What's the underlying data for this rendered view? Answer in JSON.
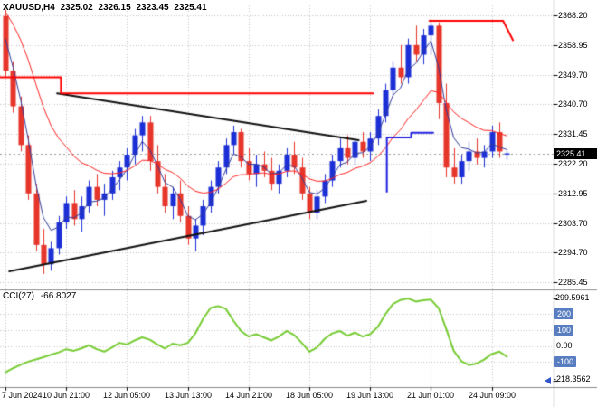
{
  "window": {
    "background": "#ffffff",
    "grid_color": "#c4c4c4",
    "separator_color": "#8a8a8a",
    "axis_text_color": "#000000"
  },
  "header": {
    "symbol_period": "XAUUSD,H4",
    "open": "2325.02",
    "high": "2326.15",
    "low": "2323.45",
    "close": "2325.41"
  },
  "price_axis": {
    "ticks": [
      "2368.20",
      "2358.95",
      "2349.70",
      "2340.70",
      "2331.45",
      "2322.20",
      "2312.95",
      "2303.70",
      "2294.70",
      "2285.45"
    ],
    "current_price_label": "2325.41",
    "badge_bg": "#000000",
    "badge_text": "#ffffff"
  },
  "time_axis": {
    "labels": [
      "7 Jun 2024",
      "10 Jun 21:00",
      "12 Jun 05:00",
      "13 Jun 13:00",
      "14 Jun 21:00",
      "18 Jun 05:00",
      "19 Jun 13:00",
      "21 Jun 01:00",
      "24 Jun 09:00"
    ],
    "label_indices": [
      0,
      8,
      16,
      24,
      32,
      40,
      48,
      56,
      64
    ]
  },
  "indicator_panel": {
    "name": "CCI(27)",
    "value": "-66.8027",
    "scale_max_label": "299.5961",
    "scale_min_label": "-218.3562",
    "levels": [
      {
        "label": "200",
        "value": 200,
        "badge": true
      },
      {
        "label": "100",
        "value": 100,
        "badge": true
      },
      {
        "label": "0.00",
        "value": 0,
        "badge": false
      },
      {
        "label": "-100",
        "value": -100,
        "badge": true
      }
    ],
    "badge_bg": "#587dc0",
    "badge_text": "#ffffff"
  },
  "chart_data": [
    {
      "type": "candlestick",
      "title": "XAUUSD,H4",
      "ylim": [
        2285.45,
        2368.2
      ],
      "up_color": "#1c2fd6",
      "down_color": "#e6352b",
      "current_price": 2325.41,
      "candles": [
        [
          2368,
          2370,
          2349,
          2351
        ],
        [
          2351,
          2354,
          2338,
          2340
        ],
        [
          2340,
          2343,
          2326,
          2328
        ],
        [
          2328,
          2331,
          2311,
          2313
        ],
        [
          2313,
          2316,
          2295,
          2297
        ],
        [
          2297,
          2302,
          2288,
          2291
        ],
        [
          2291,
          2298,
          2289,
          2296
        ],
        [
          2296,
          2306,
          2294,
          2304
        ],
        [
          2304,
          2312,
          2302,
          2310
        ],
        [
          2310,
          2314,
          2303,
          2305
        ],
        [
          2305,
          2312,
          2301,
          2309
        ],
        [
          2309,
          2317,
          2307,
          2315
        ],
        [
          2315,
          2319,
          2309,
          2311
        ],
        [
          2311,
          2316,
          2306,
          2313
        ],
        [
          2313,
          2320,
          2311,
          2318
        ],
        [
          2318,
          2323,
          2314,
          2321
        ],
        [
          2321,
          2327,
          2317,
          2325
        ],
        [
          2325,
          2333,
          2322,
          2331
        ],
        [
          2331,
          2337,
          2326,
          2335
        ],
        [
          2335,
          2337,
          2320,
          2323
        ],
        [
          2323,
          2328,
          2313,
          2315
        ],
        [
          2315,
          2319,
          2307,
          2309
        ],
        [
          2309,
          2315,
          2305,
          2313
        ],
        [
          2313,
          2317,
          2304,
          2306
        ],
        [
          2306,
          2309,
          2297,
          2299
        ],
        [
          2299,
          2305,
          2295,
          2303
        ],
        [
          2303,
          2311,
          2300,
          2309
        ],
        [
          2309,
          2317,
          2307,
          2315
        ],
        [
          2315,
          2323,
          2313,
          2321
        ],
        [
          2321,
          2330,
          2319,
          2328
        ],
        [
          2328,
          2334,
          2325,
          2332
        ],
        [
          2332,
          2333,
          2321,
          2323
        ],
        [
          2323,
          2327,
          2317,
          2319
        ],
        [
          2319,
          2325,
          2315,
          2322
        ],
        [
          2322,
          2326,
          2318,
          2320
        ],
        [
          2320,
          2324,
          2314,
          2316
        ],
        [
          2316,
          2322,
          2313,
          2320
        ],
        [
          2320,
          2327,
          2318,
          2325
        ],
        [
          2325,
          2329,
          2319,
          2321
        ],
        [
          2321,
          2324,
          2311,
          2313
        ],
        [
          2313,
          2315,
          2305,
          2307
        ],
        [
          2307,
          2314,
          2305,
          2312
        ],
        [
          2312,
          2319,
          2310,
          2317
        ],
        [
          2317,
          2325,
          2315,
          2323
        ],
        [
          2323,
          2330,
          2321,
          2327
        ],
        [
          2327,
          2331,
          2322,
          2324
        ],
        [
          2324,
          2330,
          2322,
          2329
        ],
        [
          2329,
          2332,
          2324,
          2326
        ],
        [
          2326,
          2332,
          2323,
          2330
        ],
        [
          2330,
          2339,
          2328,
          2337
        ],
        [
          2337,
          2347,
          2335,
          2345
        ],
        [
          2345,
          2354,
          2343,
          2352
        ],
        [
          2352,
          2359,
          2347,
          2349
        ],
        [
          2349,
          2361,
          2347,
          2359
        ],
        [
          2359,
          2365,
          2354,
          2356
        ],
        [
          2356,
          2364,
          2353,
          2362
        ],
        [
          2362,
          2366,
          2356,
          2365
        ],
        [
          2365,
          2366,
          2336,
          2341
        ],
        [
          2341,
          2347,
          2318,
          2321
        ],
        [
          2321,
          2327,
          2316,
          2318
        ],
        [
          2318,
          2325,
          2316,
          2323
        ],
        [
          2323,
          2329,
          2320,
          2326
        ],
        [
          2326,
          2330,
          2322,
          2324
        ],
        [
          2324,
          2328,
          2321,
          2326
        ],
        [
          2326,
          2334,
          2324,
          2332
        ],
        [
          2332,
          2335,
          2324,
          2326
        ],
        [
          2325.02,
          2326.15,
          2323.45,
          2325.41
        ]
      ],
      "overlays": [
        {
          "name": "fast-ma",
          "kind": "ema",
          "alpha": 0.42,
          "seed": 2368,
          "color": "#303a99",
          "width": 1
        },
        {
          "name": "slow-ma",
          "kind": "ema",
          "alpha": 0.13,
          "seed": 2372,
          "color": "#ff2222",
          "width": 1
        }
      ],
      "trendlines": [
        {
          "name": "descending-trendline",
          "color": "#111111",
          "width": 2,
          "points": [
            [
              6.8,
              2344.0
            ],
            [
              46.5,
              2329.5
            ]
          ]
        },
        {
          "name": "ascending-trendline",
          "color": "#111111",
          "width": 2,
          "points": [
            [
              0.5,
              2288.8
            ],
            [
              47.5,
              2310.7
            ]
          ]
        }
      ],
      "segments": [
        {
          "name": "red-resistance-step",
          "color": "#ff0000",
          "width": 2,
          "points": [
            [
              -0.7,
              2349.0
            ],
            [
              7.3,
              2349.0
            ],
            [
              7.3,
              2344.0
            ],
            [
              48.4,
              2344.0
            ]
          ]
        },
        {
          "name": "red-top-resistance",
          "color": "#ff0000",
          "width": 2,
          "points": [
            [
              55.8,
              2366.5
            ],
            [
              65.5,
              2366.5
            ],
            [
              66.8,
              2360.5
            ]
          ]
        },
        {
          "name": "blue-support-step",
          "color": "#2222e0",
          "width": 2,
          "points": [
            [
              50.2,
              2313.5
            ],
            [
              50.2,
              2330.3
            ],
            [
              53.4,
              2330.3
            ],
            [
              53.4,
              2331.8
            ],
            [
              56.3,
              2331.8
            ]
          ]
        }
      ]
    },
    {
      "type": "line",
      "name": "CCI",
      "period": 27,
      "current_value": -66.8027,
      "ylim": [
        -218.3562,
        299.5961
      ],
      "levels": [
        200,
        100,
        0,
        -100
      ],
      "color": "#77cc33",
      "width": 2,
      "values": [
        -165,
        -140,
        -118,
        -98,
        -85,
        -70,
        -55,
        -40,
        -20,
        -30,
        -15,
        5,
        -20,
        -35,
        -10,
        20,
        10,
        35,
        55,
        40,
        10,
        -15,
        15,
        5,
        20,
        80,
        170,
        240,
        252,
        235,
        160,
        95,
        60,
        75,
        55,
        35,
        60,
        95,
        70,
        20,
        -35,
        -10,
        45,
        80,
        95,
        65,
        85,
        60,
        75,
        120,
        200,
        265,
        290,
        299.6,
        280,
        288,
        292,
        240,
        110,
        -30,
        -95,
        -120,
        -110,
        -85,
        -50,
        -35,
        -66.8
      ]
    }
  ]
}
